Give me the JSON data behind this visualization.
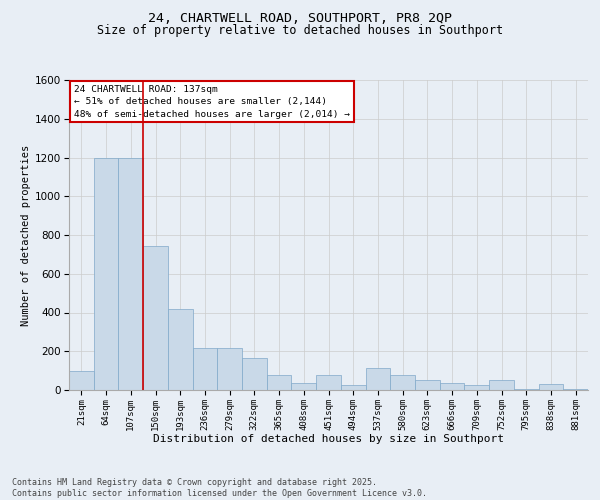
{
  "title1": "24, CHARTWELL ROAD, SOUTHPORT, PR8 2QP",
  "title2": "Size of property relative to detached houses in Southport",
  "xlabel": "Distribution of detached houses by size in Southport",
  "ylabel": "Number of detached properties",
  "categories": [
    "21sqm",
    "64sqm",
    "107sqm",
    "150sqm",
    "193sqm",
    "236sqm",
    "279sqm",
    "322sqm",
    "365sqm",
    "408sqm",
    "451sqm",
    "494sqm",
    "537sqm",
    "580sqm",
    "623sqm",
    "666sqm",
    "709sqm",
    "752sqm",
    "795sqm",
    "838sqm",
    "881sqm"
  ],
  "values": [
    100,
    1195,
    1195,
    745,
    420,
    215,
    215,
    165,
    75,
    35,
    75,
    25,
    115,
    75,
    50,
    35,
    25,
    50,
    5,
    30,
    5
  ],
  "bar_color": "#c9d9e8",
  "bar_edge_color": "#7fa8c9",
  "vline_x": 2.5,
  "vline_color": "#cc0000",
  "annotation_text_line1": "24 CHARTWELL ROAD: 137sqm",
  "annotation_text_line2": "← 51% of detached houses are smaller (2,144)",
  "annotation_text_line3": "48% of semi-detached houses are larger (2,014) →",
  "annotation_box_color": "#cc0000",
  "annotation_bg": "#ffffff",
  "ylim": [
    0,
    1600
  ],
  "yticks": [
    0,
    200,
    400,
    600,
    800,
    1000,
    1200,
    1400,
    1600
  ],
  "grid_color": "#cccccc",
  "bg_color": "#e8eef5",
  "footer_line1": "Contains HM Land Registry data © Crown copyright and database right 2025.",
  "footer_line2": "Contains public sector information licensed under the Open Government Licence v3.0."
}
